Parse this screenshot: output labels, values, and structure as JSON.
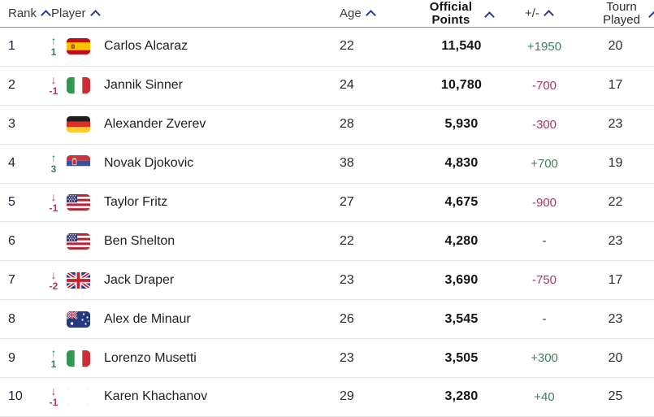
{
  "table": {
    "columns": [
      {
        "id": "rank",
        "label": "Rank",
        "sort_icon": "chevron-up-icon"
      },
      {
        "id": "player",
        "label": "Player",
        "sort_icon": "chevron-up-icon"
      },
      {
        "id": "age",
        "label": "Age",
        "sort_icon": "chevron-up-icon"
      },
      {
        "id": "points",
        "label": "Official Points",
        "sort_icon": "chevron-up-icon"
      },
      {
        "id": "change",
        "label": "+/-",
        "sort_icon": "chevron-up-icon"
      },
      {
        "id": "tourn",
        "label": "Tourn Played",
        "sort_icon": "chevron-up-icon"
      }
    ],
    "rows": [
      {
        "rank": "1",
        "movement": {
          "direction": "up",
          "value": "1"
        },
        "flag": "es",
        "flag_name": "spain-flag",
        "player": "Carlos Alcaraz",
        "age": "22",
        "points": "11,540",
        "change": "+1950",
        "change_type": "positive",
        "tourn_played": "20"
      },
      {
        "rank": "2",
        "movement": {
          "direction": "down",
          "value": "-1"
        },
        "flag": "it",
        "flag_name": "italy-flag",
        "player": "Jannik Sinner",
        "age": "24",
        "points": "10,780",
        "change": "-700",
        "change_type": "negative",
        "tourn_played": "17"
      },
      {
        "rank": "3",
        "movement": null,
        "flag": "de",
        "flag_name": "germany-flag",
        "player": "Alexander Zverev",
        "age": "28",
        "points": "5,930",
        "change": "-300",
        "change_type": "negative",
        "tourn_played": "23"
      },
      {
        "rank": "4",
        "movement": {
          "direction": "up",
          "value": "3"
        },
        "flag": "rs",
        "flag_name": "serbia-flag",
        "player": "Novak Djokovic",
        "age": "38",
        "points": "4,830",
        "change": "+700",
        "change_type": "positive",
        "tourn_played": "19"
      },
      {
        "rank": "5",
        "movement": {
          "direction": "down",
          "value": "-1"
        },
        "flag": "us",
        "flag_name": "usa-flag",
        "player": "Taylor Fritz",
        "age": "27",
        "points": "4,675",
        "change": "-900",
        "change_type": "negative",
        "tourn_played": "22"
      },
      {
        "rank": "6",
        "movement": null,
        "flag": "us",
        "flag_name": "usa-flag",
        "player": "Ben Shelton",
        "age": "22",
        "points": "4,280",
        "change": "-",
        "change_type": "neutral",
        "tourn_played": "23"
      },
      {
        "rank": "7",
        "movement": {
          "direction": "down",
          "value": "-2"
        },
        "flag": "gb",
        "flag_name": "great-britain-flag",
        "player": "Jack Draper",
        "age": "23",
        "points": "3,690",
        "change": "-750",
        "change_type": "negative",
        "tourn_played": "17"
      },
      {
        "rank": "8",
        "movement": null,
        "flag": "au",
        "flag_name": "australia-flag",
        "player": "Alex de Minaur",
        "age": "26",
        "points": "3,545",
        "change": "-",
        "change_type": "neutral",
        "tourn_played": "23"
      },
      {
        "rank": "9",
        "movement": {
          "direction": "up",
          "value": "1"
        },
        "flag": "it",
        "flag_name": "italy-flag",
        "player": "Lorenzo Musetti",
        "age": "23",
        "points": "3,505",
        "change": "+300",
        "change_type": "positive",
        "tourn_played": "20"
      },
      {
        "rank": "10",
        "movement": {
          "direction": "down",
          "value": "-1"
        },
        "flag": "neutral",
        "flag_name": "neutral-white-flag",
        "player": "Karen Khachanov",
        "age": "29",
        "points": "3,280",
        "change": "+40",
        "change_type": "positive",
        "tourn_played": "25"
      }
    ]
  },
  "colors": {
    "positive_green": "#3d7f5d",
    "negative_red": "#b0345c",
    "sort_caret_navy": "#2d3a8c"
  },
  "movement_icons": {
    "up": "↑",
    "down": "↓"
  }
}
